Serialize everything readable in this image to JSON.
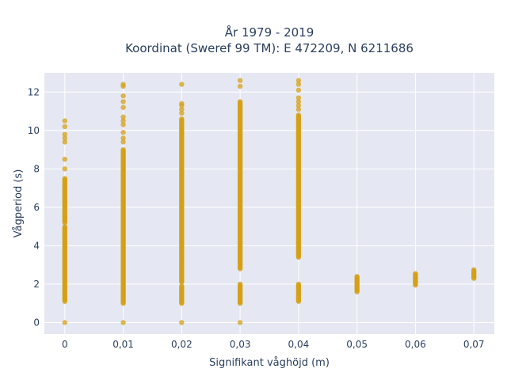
{
  "chart_data": {
    "type": "scatter",
    "title_lines": [
      "År 1979 - 2019",
      "Koordinat (Sweref 99 TM): E 472209, N 6211686"
    ],
    "xlabel": "Signifikant våghöjd (m)",
    "ylabel": "Vågperiod (s)",
    "xlim": [
      -0.0035,
      0.0735
    ],
    "ylim": [
      -0.6,
      13.0
    ],
    "x_ticks": [
      0,
      0.01,
      0.02,
      0.03,
      0.04,
      0.05,
      0.06,
      0.07
    ],
    "x_tick_labels": [
      "0",
      "0,01",
      "0,02",
      "0,03",
      "0,04",
      "0,05",
      "0,06",
      "0,07"
    ],
    "y_ticks": [
      0,
      2,
      4,
      6,
      8,
      10,
      12
    ],
    "y_tick_labels": [
      "0",
      "2",
      "4",
      "6",
      "8",
      "10",
      "12"
    ],
    "grid": true,
    "colors": {
      "marker": "#d4a017",
      "plot_bg": "#e5e8f2",
      "grid": "#ffffff"
    },
    "series": [
      {
        "x": 0,
        "segments": [
          [
            1.1,
            5.0
          ],
          [
            5.2,
            7.5
          ]
        ],
        "extra_y": [
          0.0,
          8.0,
          8.5,
          9.4,
          9.6,
          9.8,
          10.2,
          10.5
        ]
      },
      {
        "x": 0.01,
        "segments": [
          [
            1.0,
            9.0
          ]
        ],
        "extra_y": [
          0.0,
          9.4,
          9.6,
          9.9,
          10.3,
          10.5,
          10.7,
          11.2,
          11.5,
          11.8,
          12.3,
          12.4
        ]
      },
      {
        "x": 0.02,
        "segments": [
          [
            1.0,
            1.9
          ],
          [
            2.1,
            10.6
          ]
        ],
        "extra_y": [
          0.0,
          10.9,
          11.1,
          11.3,
          11.4,
          12.4
        ]
      },
      {
        "x": 0.03,
        "segments": [
          [
            1.0,
            2.0
          ],
          [
            2.8,
            11.5
          ]
        ],
        "extra_y": [
          0.0,
          12.3,
          12.6
        ]
      },
      {
        "x": 0.04,
        "segments": [
          [
            1.1,
            2.0
          ],
          [
            3.4,
            10.8
          ]
        ],
        "extra_y": [
          11.1,
          11.3,
          11.5,
          11.7,
          12.1,
          12.4,
          12.6
        ]
      },
      {
        "x": 0.05,
        "segments": [
          [
            1.6,
            2.4
          ]
        ],
        "extra_y": []
      },
      {
        "x": 0.06,
        "segments": [
          [
            1.95,
            2.55
          ]
        ],
        "extra_y": []
      },
      {
        "x": 0.07,
        "segments": [
          [
            2.3,
            2.75
          ]
        ],
        "extra_y": []
      }
    ]
  }
}
